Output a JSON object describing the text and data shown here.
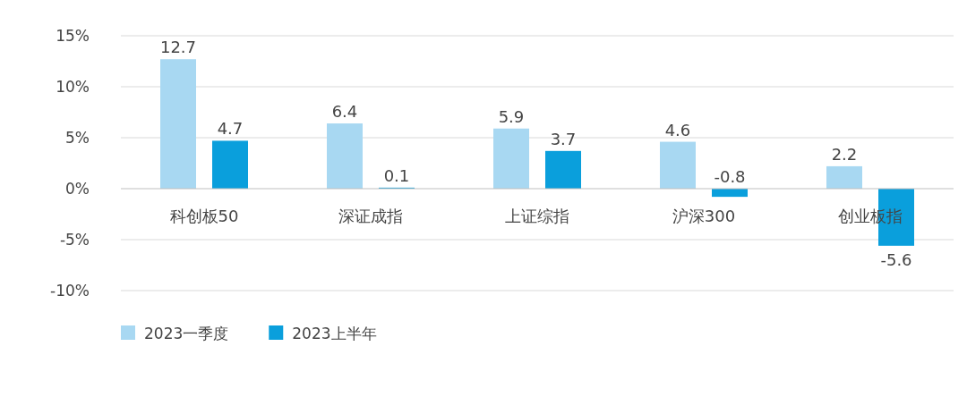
{
  "chart_data": {
    "type": "bar",
    "categories": [
      "科创板50",
      "深证成指",
      "上证综指",
      "沪深300",
      "创业板指"
    ],
    "series": [
      {
        "name": "2023一季度",
        "color": "#a8d8f2",
        "values": [
          12.7,
          6.4,
          5.9,
          4.6,
          2.2
        ]
      },
      {
        "name": "2023上半年",
        "color": "#0a9fdc",
        "values": [
          4.7,
          0.1,
          3.7,
          -0.8,
          -5.6
        ]
      }
    ],
    "ylim": [
      -10,
      15
    ],
    "yticks": [
      {
        "value": -10,
        "label": "-10%"
      },
      {
        "value": -5,
        "label": "-5%"
      },
      {
        "value": 0,
        "label": "0%"
      },
      {
        "value": 5,
        "label": "5%"
      },
      {
        "value": 10,
        "label": "10%"
      },
      {
        "value": 15,
        "label": "15%"
      }
    ],
    "grid": "y",
    "legend": "bottom",
    "data_labels": true
  }
}
